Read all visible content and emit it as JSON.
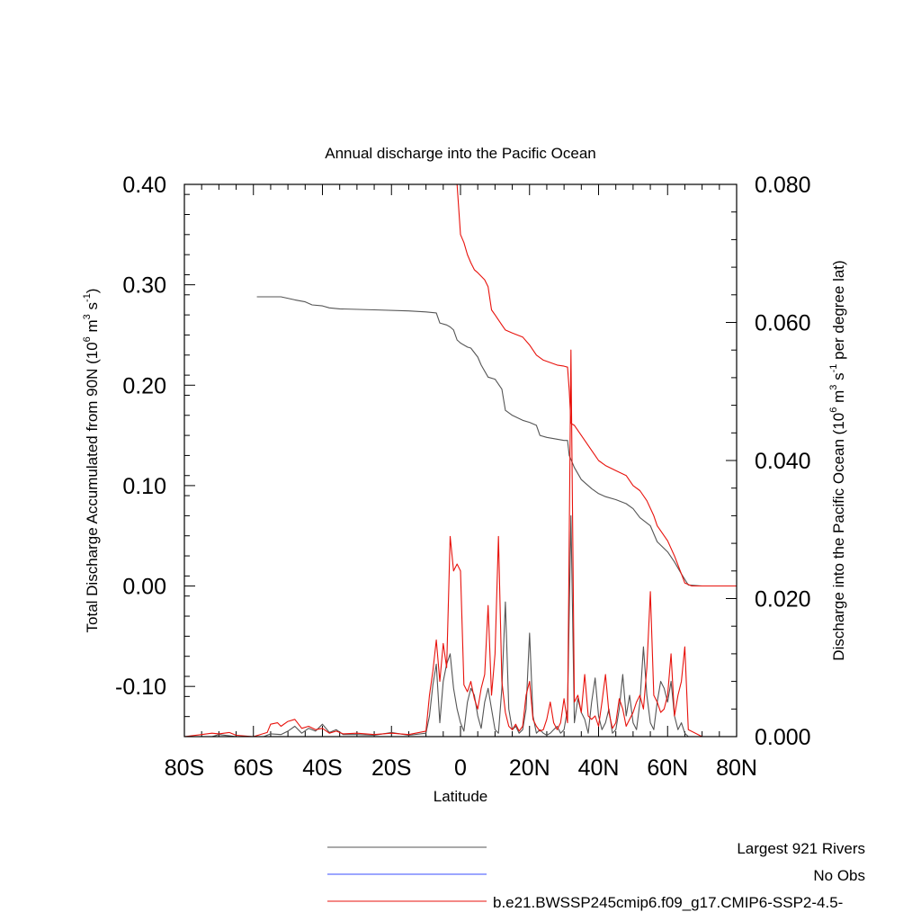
{
  "chart_data": {
    "type": "line",
    "title": "Annual discharge into the Pacific Ocean",
    "xlabel": "Latitude",
    "ylabel_left": "Total Discharge Accumulated from 90N (10^6 m^3 s^-1)",
    "ylabel_right": "Discharge into the Pacific Ocean (10^6 m^3 s^-1 per degree lat)",
    "xlim": [
      -80,
      80
    ],
    "ylim_left": [
      -0.15,
      0.4
    ],
    "ylim_right": [
      0.0,
      0.08
    ],
    "x_ticks": [
      {
        "value": -80,
        "label": "80S"
      },
      {
        "value": -60,
        "label": "60S"
      },
      {
        "value": -40,
        "label": "40S"
      },
      {
        "value": -20,
        "label": "20S"
      },
      {
        "value": 0,
        "label": "0"
      },
      {
        "value": 20,
        "label": "20N"
      },
      {
        "value": 40,
        "label": "40N"
      },
      {
        "value": 60,
        "label": "60N"
      },
      {
        "value": 80,
        "label": "80N"
      }
    ],
    "y_left_ticks": [
      {
        "value": 0.4,
        "label": "0.40"
      },
      {
        "value": 0.3,
        "label": "0.30"
      },
      {
        "value": 0.2,
        "label": "0.20"
      },
      {
        "value": 0.1,
        "label": "0.10"
      },
      {
        "value": 0.0,
        "label": "0.00"
      },
      {
        "value": -0.1,
        "label": "-0.10"
      }
    ],
    "y_right_ticks": [
      {
        "value": 0.08,
        "label": "0.080"
      },
      {
        "value": 0.06,
        "label": "0.060"
      },
      {
        "value": 0.04,
        "label": "0.040"
      },
      {
        "value": 0.02,
        "label": "0.020"
      },
      {
        "value": 0.0,
        "label": "0.000"
      }
    ],
    "legend": [
      {
        "name": "Largest 921 Rivers",
        "color": "#555555"
      },
      {
        "name": "No Obs",
        "color": "#3a4cff"
      },
      {
        "name": "b.e21.BWSSP245cmip6.f09_g17.CMIP6-SSP2-4.5-",
        "color": "#e8120c"
      }
    ],
    "series": [
      {
        "legend_index": 0,
        "axis": "left",
        "kind": "accumulated",
        "color": "#555555",
        "x": [
          -59,
          -52,
          -48,
          -45,
          -43,
          -40,
          -38,
          -35,
          -25,
          -15,
          -10,
          -7,
          -6,
          -4,
          -3,
          -2,
          -1,
          0,
          2,
          3,
          5,
          6,
          8,
          10,
          12,
          13,
          15,
          18,
          20,
          22,
          23,
          25,
          30,
          31,
          31.5,
          33,
          35,
          38,
          40,
          42,
          45,
          48,
          50,
          52,
          55,
          57,
          60,
          62,
          64,
          66,
          70,
          80
        ],
        "y": [
          0.288,
          0.288,
          0.285,
          0.283,
          0.28,
          0.279,
          0.277,
          0.276,
          0.275,
          0.274,
          0.273,
          0.272,
          0.262,
          0.26,
          0.258,
          0.255,
          0.245,
          0.242,
          0.238,
          0.237,
          0.228,
          0.22,
          0.208,
          0.206,
          0.196,
          0.175,
          0.17,
          0.165,
          0.163,
          0.16,
          0.15,
          0.148,
          0.145,
          0.145,
          0.13,
          0.118,
          0.106,
          0.097,
          0.092,
          0.089,
          0.086,
          0.082,
          0.077,
          0.068,
          0.06,
          0.044,
          0.034,
          0.024,
          0.012,
          0.001,
          0.0,
          0.0
        ]
      },
      {
        "legend_index": 2,
        "axis": "left",
        "kind": "accumulated",
        "color": "#e8120c",
        "x": [
          -1,
          0,
          1,
          2,
          3,
          4,
          5,
          7,
          8,
          9,
          10,
          12,
          13,
          15,
          18,
          20,
          22,
          24,
          28,
          30,
          31,
          31.5,
          32,
          33,
          35,
          38,
          40,
          42,
          45,
          48,
          50,
          52,
          54,
          56,
          57,
          60,
          62,
          64,
          65,
          67,
          70,
          80
        ],
        "y": [
          0.4,
          0.35,
          0.342,
          0.33,
          0.322,
          0.315,
          0.312,
          0.305,
          0.298,
          0.275,
          0.27,
          0.26,
          0.255,
          0.252,
          0.248,
          0.24,
          0.23,
          0.225,
          0.22,
          0.219,
          0.218,
          0.195,
          0.162,
          0.16,
          0.15,
          0.135,
          0.125,
          0.12,
          0.115,
          0.11,
          0.1,
          0.095,
          0.085,
          0.07,
          0.06,
          0.045,
          0.03,
          0.012,
          0.003,
          0.0,
          0.0,
          0.0
        ]
      },
      {
        "legend_index": 0,
        "axis": "right",
        "kind": "per_degree",
        "color": "#555555",
        "x": [
          -80,
          -75,
          -72,
          -70,
          -65,
          -60,
          -57,
          -55,
          -52,
          -50,
          -48,
          -46,
          -44,
          -42,
          -40,
          -38,
          -36,
          -34,
          -30,
          -25,
          -20,
          -15,
          -10,
          -9,
          -8,
          -7,
          -6,
          -5,
          -4,
          -3,
          -2,
          -1,
          0,
          1,
          2,
          3,
          4,
          5,
          6,
          7,
          8,
          9,
          10,
          11,
          12,
          13,
          14,
          15,
          16,
          17,
          18,
          19,
          20,
          21,
          22,
          23,
          24,
          25,
          26,
          27,
          28,
          29,
          30,
          31,
          32,
          33,
          34,
          35,
          36,
          37,
          38,
          39,
          40,
          41,
          42,
          43,
          44,
          45,
          46,
          47,
          48,
          49,
          50,
          51,
          52,
          53,
          54,
          55,
          56,
          57,
          58,
          59,
          60,
          61,
          62,
          63,
          64,
          65,
          66,
          70,
          80
        ],
        "y": [
          0,
          0,
          0,
          0.0003,
          0,
          0,
          0,
          0.0004,
          0.0003,
          0.0008,
          0.0015,
          0.0005,
          0.0012,
          0.0008,
          0.0018,
          0.0006,
          0.001,
          0.0003,
          0.0003,
          0.0002,
          0.0006,
          0.0002,
          0.0005,
          0.003,
          0.0075,
          0.0105,
          0.002,
          0.008,
          0.0105,
          0.012,
          0.007,
          0.004,
          0.002,
          0.0008,
          0.005,
          0.007,
          0.006,
          0.003,
          0.0012,
          0.005,
          0.007,
          0.004,
          0.001,
          0.0005,
          0.007,
          0.0195,
          0.004,
          0.001,
          0.0015,
          0.0005,
          0.001,
          0.004,
          0.015,
          0.003,
          0.0005,
          0.001,
          0.0005,
          0.0002,
          0.0005,
          0.001,
          0.0015,
          0.0005,
          0.001,
          0.004,
          0.032,
          0.002,
          0.0055,
          0.0035,
          0.0025,
          0.0005,
          0.005,
          0.0085,
          0.003,
          0.001,
          0.002,
          0.004,
          0.0005,
          0.001,
          0.004,
          0.009,
          0.003,
          0.006,
          0.002,
          0.001,
          0.005,
          0.013,
          0.006,
          0.002,
          0.001,
          0.005,
          0.008,
          0.007,
          0.005,
          0.008,
          0.003,
          0.001,
          0.002,
          0.0005,
          0,
          0,
          0
        ]
      },
      {
        "legend_index": 2,
        "axis": "right",
        "kind": "per_degree",
        "color": "#e8120c",
        "x": [
          -80,
          -75,
          -72,
          -70,
          -67,
          -65,
          -60,
          -56,
          -55,
          -53,
          -52,
          -50,
          -48,
          -46,
          -44,
          -42,
          -40,
          -38,
          -36,
          -34,
          -30,
          -25,
          -20,
          -15,
          -10,
          -9,
          -8,
          -7,
          -6,
          -5,
          -4,
          -3,
          -2,
          -1,
          0,
          1,
          2,
          3,
          4,
          5,
          6,
          7,
          8,
          9,
          10,
          11,
          12,
          13,
          14,
          15,
          16,
          17,
          18,
          19,
          20,
          21,
          22,
          23,
          24,
          25,
          26,
          27,
          28,
          29,
          30,
          31,
          32,
          33,
          34,
          35,
          36,
          37,
          38,
          39,
          40,
          41,
          42,
          43,
          44,
          45,
          46,
          47,
          48,
          49,
          50,
          51,
          52,
          53,
          54,
          55,
          56,
          57,
          58,
          59,
          60,
          61,
          62,
          63,
          64,
          65,
          66,
          70,
          80
        ],
        "y": [
          0,
          0.0003,
          0.0005,
          0.0004,
          0.0006,
          0.0002,
          0,
          0.0006,
          0.0018,
          0.002,
          0.0015,
          0.0022,
          0.0025,
          0.0012,
          0.0015,
          0.001,
          0.0012,
          0.0005,
          0.0008,
          0.0004,
          0.0005,
          0.0003,
          0.0005,
          0.0003,
          0.0008,
          0.006,
          0.0095,
          0.014,
          0.008,
          0.0135,
          0.01,
          0.029,
          0.024,
          0.025,
          0.024,
          0.0075,
          0.0065,
          0.008,
          0.0055,
          0.004,
          0.007,
          0.009,
          0.019,
          0.006,
          0.012,
          0.029,
          0.008,
          0.0035,
          0.0015,
          0.001,
          0.0018,
          0.0008,
          0.0015,
          0.006,
          0.008,
          0.0025,
          0.0015,
          0.0008,
          0.001,
          0.0025,
          0.005,
          0.002,
          0.001,
          0.002,
          0.0055,
          0.002,
          0.056,
          0.005,
          0.006,
          0.0035,
          0.009,
          0.003,
          0.0025,
          0.003,
          0.0015,
          0.005,
          0.009,
          0.0035,
          0.0012,
          0.002,
          0.0055,
          0.004,
          0.0015,
          0.0025,
          0.0035,
          0.005,
          0.006,
          0.004,
          0.01,
          0.021,
          0.006,
          0.005,
          0.0035,
          0.004,
          0.006,
          0.012,
          0.003,
          0.006,
          0.008,
          0.013,
          0.001,
          0,
          0
        ]
      }
    ]
  }
}
